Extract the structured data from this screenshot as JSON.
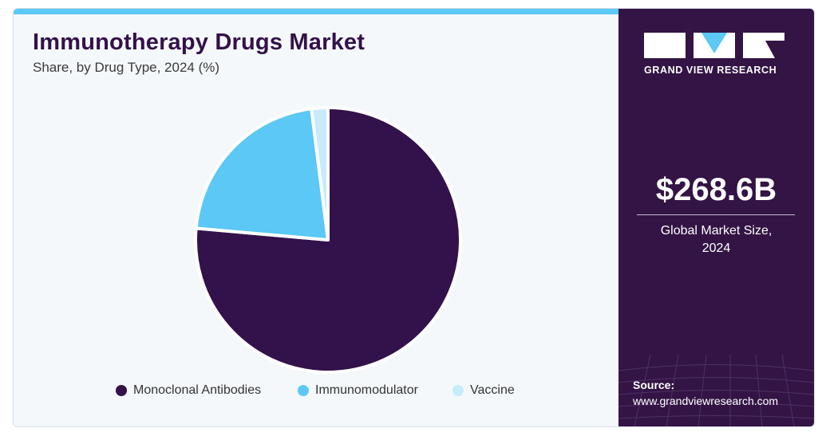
{
  "header": {
    "title": "Immunotherapy Drugs Market",
    "subtitle": "Share, by Drug Type, 2024 (%)"
  },
  "chart_data": {
    "type": "pie",
    "categories": [
      "Monoclonal Antibodies",
      "Immunomodulator",
      "Vaccine"
    ],
    "values": [
      76.4,
      21.6,
      2.0
    ],
    "unit": "%",
    "start_angle_deg": 0,
    "direction": "clockwise",
    "colors": [
      "#33114a",
      "#5bc8f5",
      "#c8ebfb"
    ],
    "legend_position": "bottom"
  },
  "side_panel": {
    "brand": "GRAND VIEW RESEARCH",
    "market_value": "$268.6B",
    "market_label_line1": "Global Market Size,",
    "market_label_line2": "2024",
    "source_label": "Source:",
    "source_url": "www.grandviewresearch.com"
  },
  "colors": {
    "panel_bg": "#331445",
    "accent": "#5bc8f5",
    "title": "#33114a"
  }
}
